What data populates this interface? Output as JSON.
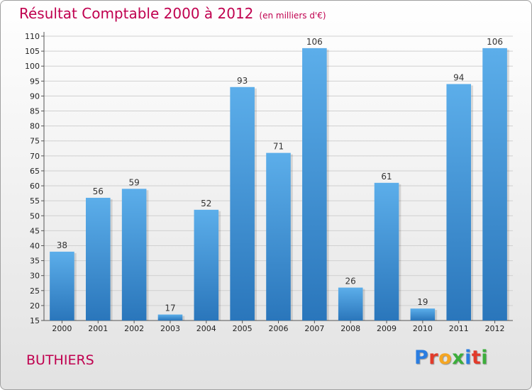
{
  "title": "Résultat Comptable 2000 à 2012",
  "subtitle": "(en milliers d'€)",
  "location": "BUTHIERS",
  "logo": {
    "letters": [
      "P",
      "r",
      "o",
      "x",
      "i",
      "t",
      "i"
    ],
    "colors": [
      "#2a7de1",
      "#e23b2a",
      "#f5a623",
      "#3cae3c",
      "#2a7de1",
      "#e23b2a",
      "#3cae3c"
    ]
  },
  "chart_data": {
    "type": "bar",
    "title": "Résultat Comptable 2000 à 2012",
    "subtitle": "(en milliers d'€)",
    "xlabel": "",
    "ylabel": "",
    "ylim": [
      15,
      110
    ],
    "yticks": [
      15,
      20,
      25,
      30,
      35,
      40,
      45,
      50,
      55,
      60,
      65,
      70,
      75,
      80,
      85,
      90,
      95,
      100,
      105,
      110
    ],
    "grid": true,
    "categories": [
      "2000",
      "2001",
      "2002",
      "2003",
      "2004",
      "2005",
      "2006",
      "2007",
      "2008",
      "2009",
      "2010",
      "2011",
      "2012"
    ],
    "values": [
      38,
      56,
      59,
      17,
      52,
      93,
      71,
      106,
      26,
      61,
      19,
      94,
      106
    ],
    "bar_color": "#3a8fd8"
  }
}
